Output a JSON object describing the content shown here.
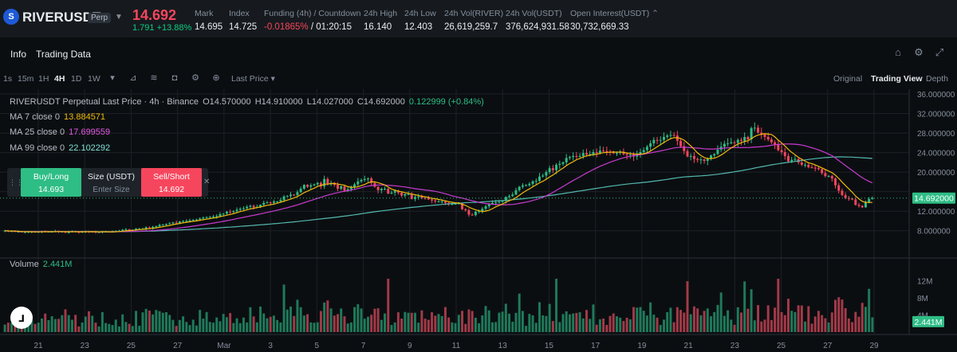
{
  "ticker": {
    "symbol": "RIVERUSDT",
    "badge": "Perp",
    "last_price": "14.692",
    "change": "1.791 +13.88%",
    "stats": [
      {
        "label": "Mark",
        "value": "14.695"
      },
      {
        "label": "Index",
        "value": "14.725"
      },
      {
        "label": "Funding (4h) / Countdown",
        "value_neg": "-0.01865%",
        "value_rest": " / 01:20:15"
      },
      {
        "label": "24h High",
        "value": "16.140"
      },
      {
        "label": "24h Low",
        "value": "12.403"
      },
      {
        "label": "24h Vol(RIVER)",
        "value": "26,619,259.7"
      },
      {
        "label": "24h Vol(USDT)",
        "value": "376,624,931.58"
      },
      {
        "label": "Open Interest(USDT)",
        "value": "30,732,669.33"
      }
    ]
  },
  "tabs": {
    "info": "Info",
    "trading_data": "Trading Data"
  },
  "toolbar": {
    "timeframes": [
      "1s",
      "15m",
      "1H",
      "4H",
      "1D",
      "1W"
    ],
    "active_timeframe": "4H",
    "price_type": "Last Price",
    "views": [
      "Original",
      "Trading View",
      "Depth"
    ],
    "active_view": "Trading View"
  },
  "legend": {
    "title": "RIVERUSDT Perpetual Last Price · 4h · Binance",
    "o": "O14.570000",
    "h": "H14.910000",
    "l": "L14.027000",
    "c": "C14.692000",
    "change": "0.122999 (+0.84%)",
    "ma7_label": "MA 7 close 0",
    "ma7_value": "13.884571",
    "ma25_label": "MA 25 close 0",
    "ma25_value": "17.699559",
    "ma99_label": "MA 99 close 0",
    "ma99_value": "22.102292",
    "volume_label": "Volume",
    "volume_value": "2.441M"
  },
  "order": {
    "buy_label": "Buy/Long",
    "buy_price": "14.693",
    "size_label": "Size (USDT)",
    "size_placeholder": "Enter Size",
    "sell_label": "Sell/Short",
    "sell_price": "14.692"
  },
  "colors": {
    "up": "#0ecb81",
    "down": "#f6465d",
    "ma7": "#f0b90b",
    "ma25": "#c93bd1",
    "ma99": "#53b9b0",
    "bg": "#0b0e11"
  },
  "chart_data": {
    "type": "candlestick",
    "price_axis": {
      "min": 6,
      "max": 36,
      "ticks": [
        "36.000000",
        "32.000000",
        "28.000000",
        "24.000000",
        "20.000000",
        "16.000000",
        "12.000000",
        "8.000000"
      ]
    },
    "price_tick_values": [
      36,
      32,
      28,
      24,
      20,
      16,
      12,
      8
    ],
    "current_price_label": "14.692000",
    "current_price": 14.692,
    "volume_axis": {
      "ticks": [
        "12M",
        "8M",
        "4M"
      ],
      "tick_values": [
        12,
        8,
        4
      ],
      "max": 14
    },
    "current_volume_label": "2.441M",
    "current_volume": 2.441,
    "date_labels": [
      "21",
      "23",
      "25",
      "27",
      "Mar",
      "3",
      "5",
      "7",
      "9",
      "11",
      "13",
      "15",
      "17",
      "19",
      "21",
      "23",
      "25",
      "27",
      "29"
    ],
    "closes": [
      8.0,
      7.9,
      7.9,
      7.8,
      7.8,
      7.7,
      7.7,
      7.8,
      7.8,
      7.7,
      7.8,
      7.9,
      7.8,
      7.8,
      7.8,
      7.9,
      7.8,
      7.8,
      7.7,
      7.7,
      7.9,
      7.8,
      7.7,
      7.8,
      7.9,
      7.8,
      7.8,
      7.7,
      7.7,
      7.8,
      7.8,
      7.8,
      7.8,
      7.9,
      8.0,
      8.2,
      8.3,
      8.1,
      8.2,
      8.4,
      8.4,
      8.4,
      8.7,
      8.6,
      8.8,
      8.9,
      9.2,
      9.2,
      9.4,
      9.5,
      9.7,
      9.6,
      9.9,
      10.0,
      10.0,
      10.1,
      10.2,
      10.3,
      10.5,
      10.7,
      10.8,
      10.8,
      10.9,
      11.0,
      11.4,
      11.5,
      11.9,
      11.8,
      12.0,
      12.3,
      12.5,
      12.6,
      12.9,
      13.1,
      12.8,
      12.9,
      13.3,
      13.7,
      13.8,
      13.7,
      14.0,
      14.0,
      14.3,
      15.0,
      15.1,
      15.4,
      15.3,
      15.9,
      16.6,
      17.4,
      17.0,
      17.3,
      17.5,
      17.8,
      17.1,
      18.6,
      17.5,
      17.8,
      17.4,
      16.6,
      17.1,
      16.2,
      16.5,
      16.9,
      17.5,
      18.1,
      18.4,
      18.6,
      18.7,
      17.8,
      17.0,
      16.3,
      16.6,
      16.6,
      15.6,
      15.8,
      16.2,
      15.8,
      15.2,
      15.5,
      15.5,
      14.5,
      14.9,
      15.0,
      14.7,
      14.6,
      14.4,
      14.2,
      14.0,
      14.0,
      14.0,
      13.7,
      13.4,
      13.5,
      13.5,
      13.6,
      12.4,
      12.2,
      11.3,
      11.2,
      11.9,
      12.0,
      12.5,
      13.0,
      13.4,
      13.7,
      13.8,
      13.9,
      14.1,
      14.9,
      15.1,
      15.4,
      16.3,
      17.0,
      17.3,
      17.3,
      17.6,
      18.1,
      18.2,
      19.1,
      19.3,
      20.0,
      20.8,
      20.4,
      21.5,
      21.7,
      22.0,
      22.9,
      23.1,
      23.3,
      23.2,
      23.3,
      23.9,
      23.6,
      23.7,
      24.1,
      23.9,
      24.4,
      24.3,
      24.2,
      24.0,
      23.9,
      23.9,
      24.2,
      23.7,
      23.5,
      23.6,
      23.2,
      23.7,
      24.1,
      24.5,
      25.2,
      25.9,
      26.6,
      26.5,
      26.6,
      27.2,
      27.5,
      27.6,
      27.5,
      26.4,
      25.3,
      24.3,
      23.2,
      23.3,
      22.7,
      22.5,
      22.6,
      22.3,
      22.7,
      23.4,
      23.7,
      24.6,
      25.2,
      25.8,
      25.9,
      26.1,
      26.0,
      26.6,
      26.4,
      27.2,
      26.7,
      29.0,
      29.1,
      28.1,
      27.7,
      27.2,
      26.7,
      26.1,
      25.6,
      24.5,
      24.1,
      23.3,
      22.2,
      22.5,
      22.7,
      22.0,
      21.5,
      21.5,
      21.0,
      20.9,
      20.8,
      20.6,
      19.8,
      19.2,
      19.2,
      18.7,
      17.3,
      16.2,
      15.3,
      14.7,
      14.6,
      14.4,
      13.3,
      13.1,
      12.8,
      13.8,
      14.5,
      14.7
    ],
    "ma7_last": 13.884571,
    "ma25_last": 17.699559,
    "ma99_last": 22.102292
  }
}
